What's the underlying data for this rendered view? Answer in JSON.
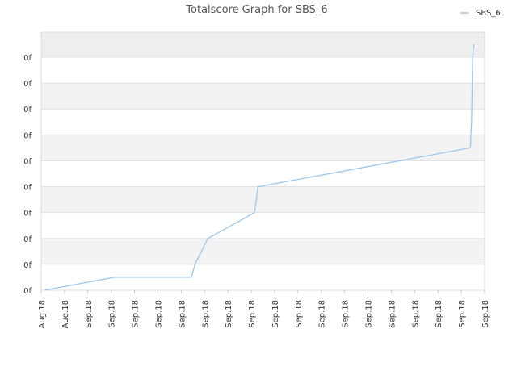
{
  "chart_data": {
    "type": "line",
    "title": "Totalscore Graph for SBS_6",
    "xlabel": "",
    "ylabel": "",
    "legend_position": "top-right",
    "grid": true,
    "y_tick_labels": [
      "0f",
      "0f",
      "0f",
      "0f",
      "0f",
      "0f",
      "0f",
      "0f",
      "0f",
      "0f"
    ],
    "x_tick_labels": [
      "Aug.18",
      "Aug.18",
      "Sep.18",
      "Sep.18",
      "Sep.18",
      "Sep.18",
      "Sep.18",
      "Sep.18",
      "Sep.18",
      "Sep.18",
      "Sep.18",
      "Sep.18",
      "Sep.18",
      "Sep.18",
      "Sep.18",
      "Sep.18",
      "Sep.18",
      "Sep.18",
      "Sep.18",
      "Sep.18"
    ],
    "ylim": [
      0,
      9
    ],
    "series": [
      {
        "name": "SBS_6",
        "color": "#9cc7ea",
        "x": [
          0.0,
          3.0,
          6.3,
          6.45,
          7.0,
          9.0,
          9.15,
          18.25,
          18.3,
          18.35,
          18.4
        ],
        "y": [
          0.0,
          0.5,
          0.5,
          1.0,
          2.0,
          3.0,
          4.0,
          5.5,
          6.5,
          9.0,
          9.5
        ]
      }
    ]
  }
}
